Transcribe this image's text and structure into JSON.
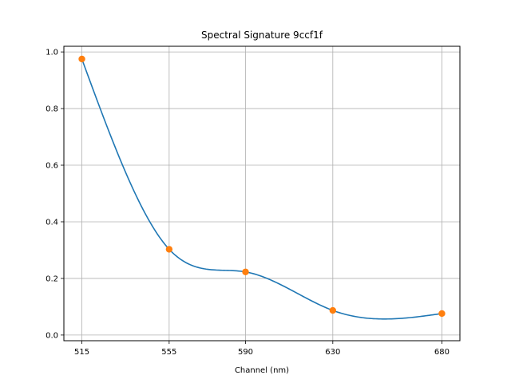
{
  "chart_data": {
    "type": "line",
    "title": "Spectral Signature 9ccf1f",
    "xlabel": "Channel (nm)",
    "ylabel": "",
    "x_ticks": [
      "515",
      "555",
      "590",
      "630",
      "680"
    ],
    "y_ticks": [
      "0.0",
      "0.2",
      "0.4",
      "0.6",
      "0.8",
      "1.0"
    ],
    "ylim": [
      -0.02,
      1.02
    ],
    "grid": true,
    "series": [
      {
        "x": [
          515,
          555,
          590,
          630,
          680
        ],
        "values": [
          0.975,
          0.303,
          0.223,
          0.087,
          0.076
        ],
        "line_color": "#1f77b4",
        "marker_color": "#ff7f0e"
      }
    ]
  }
}
